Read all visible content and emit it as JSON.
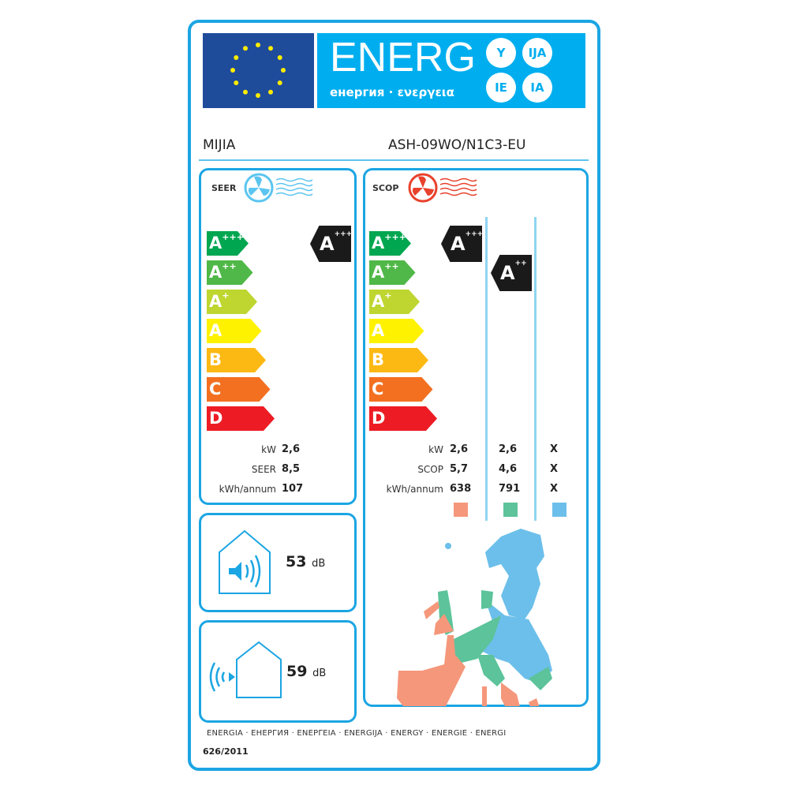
{
  "header": {
    "energy_word": "ENERG",
    "energy_subtitle": "енергия · ενεργεια",
    "language_suffixes": [
      "Y",
      "IJA",
      "IE",
      "IA"
    ],
    "flag_colors": {
      "background": "#1f4b9b",
      "stars": "#ffed00"
    }
  },
  "product": {
    "brand": "MIJIA",
    "model": "ASH-09WO/N1C3-EU"
  },
  "scale": [
    {
      "letter": "A",
      "plus": "+++",
      "color": "#00a650"
    },
    {
      "letter": "A",
      "plus": "++",
      "color": "#50b848"
    },
    {
      "letter": "A",
      "plus": "+",
      "color": "#bed62f"
    },
    {
      "letter": "A",
      "plus": "",
      "color": "#fff200"
    },
    {
      "letter": "B",
      "plus": "",
      "color": "#fdb913"
    },
    {
      "letter": "C",
      "plus": "",
      "color": "#f37021"
    },
    {
      "letter": "D",
      "plus": "",
      "color": "#ed1c24"
    }
  ],
  "cooling": {
    "title": "SEER",
    "icon_color": "#5bc5f0",
    "rating": {
      "letter": "A",
      "plus": "+++",
      "class_index": 0
    },
    "rows": [
      {
        "label": "kW",
        "value": "2,6"
      },
      {
        "label": "SEER",
        "value": "8,5"
      },
      {
        "label": "kWh/annum",
        "value": "107"
      }
    ]
  },
  "heating": {
    "title": "SCOP",
    "icon_color": "#e8412c",
    "ratings": [
      {
        "letter": "A",
        "plus": "+++",
        "class_index": 0
      },
      {
        "letter": "A",
        "plus": "++",
        "class_index": 1
      }
    ],
    "labels": [
      "kW",
      "SCOP",
      "kWh/annum"
    ],
    "columns": [
      {
        "values": [
          "2,6",
          "5,7",
          "638"
        ],
        "color": "#f5977b"
      },
      {
        "values": [
          "2,6",
          "4,6",
          "791"
        ],
        "color": "#5cc39a"
      },
      {
        "values": [
          "X",
          "X",
          "X"
        ],
        "color": "#6cbfea"
      }
    ]
  },
  "noise": {
    "indoor": {
      "value": "53",
      "unit": "dB"
    },
    "outdoor": {
      "value": "59",
      "unit": "dB"
    }
  },
  "footer": {
    "languages": "ENERGIA · ЕНЕРГИЯ · ΕΝΕΡΓΕΙΑ · ENERGIJA · ENERGY · ENERGIE · ENERGI",
    "regulation": "626/2011"
  }
}
